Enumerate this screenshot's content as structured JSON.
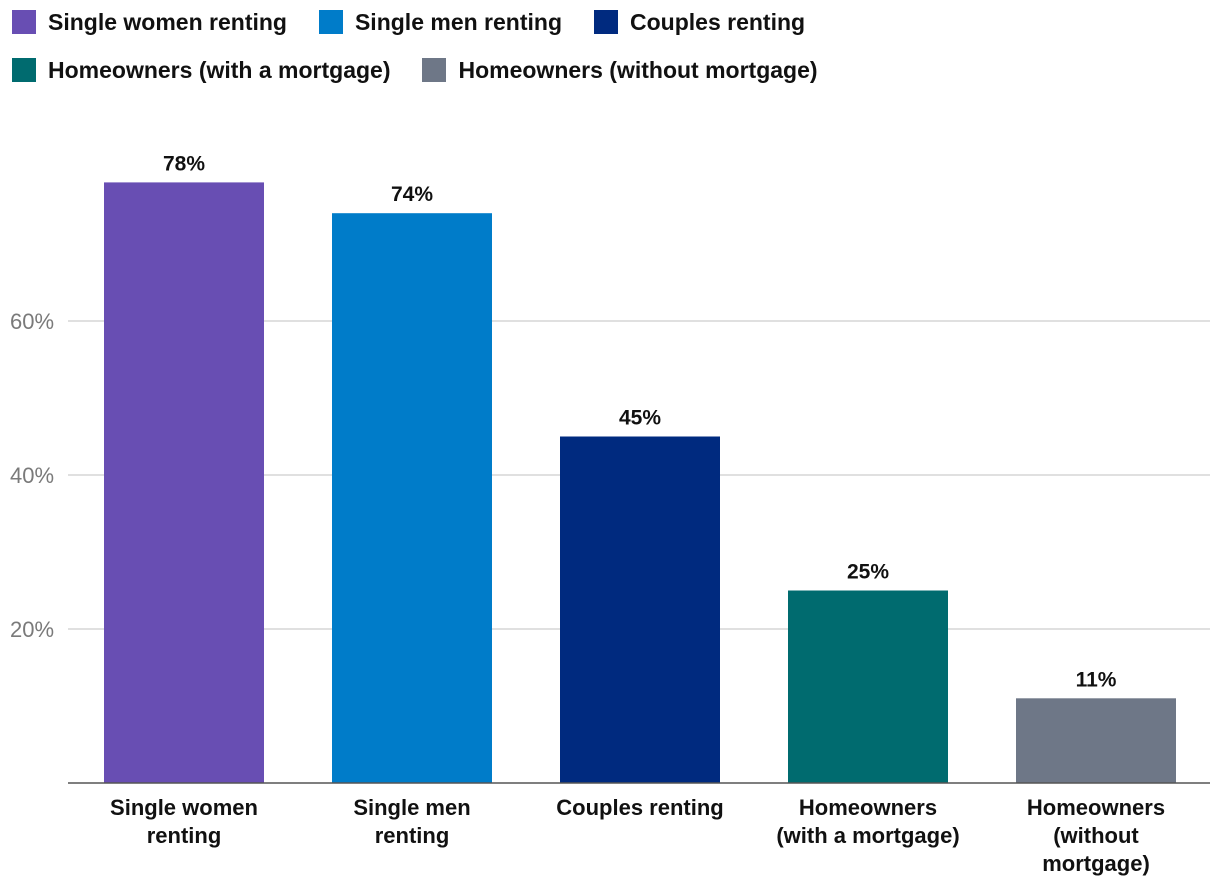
{
  "chart_data": {
    "type": "bar",
    "categories": [
      "Single women renting",
      "Single men renting",
      "Couples renting",
      "Homeowners (with a mortgage)",
      "Homeowners (without mortgage)"
    ],
    "category_labels": [
      [
        "Single women",
        "renting"
      ],
      [
        "Single men",
        "renting"
      ],
      [
        "Couples renting"
      ],
      [
        "Homeowners",
        "(with a mortgage)"
      ],
      [
        "Homeowners",
        "(without",
        "mortgage)"
      ]
    ],
    "values": [
      78,
      74,
      45,
      25,
      11
    ],
    "value_labels": [
      "78%",
      "74%",
      "45%",
      "25%",
      "11%"
    ],
    "colors": [
      "#684eb3",
      "#007cc9",
      "#002a7f",
      "#006b6f",
      "#6e7787"
    ],
    "yticks": [
      20,
      40,
      60
    ],
    "ytick_labels": [
      "20%",
      "40%",
      "60%"
    ],
    "ylim": [
      0,
      80
    ],
    "grid": true,
    "legend_position": "top",
    "legend": [
      [
        "Single women renting",
        "Single men renting",
        "Couples renting"
      ],
      [
        "Homeowners (with a mortgage)",
        "Homeowners (without mortgage)"
      ]
    ]
  }
}
